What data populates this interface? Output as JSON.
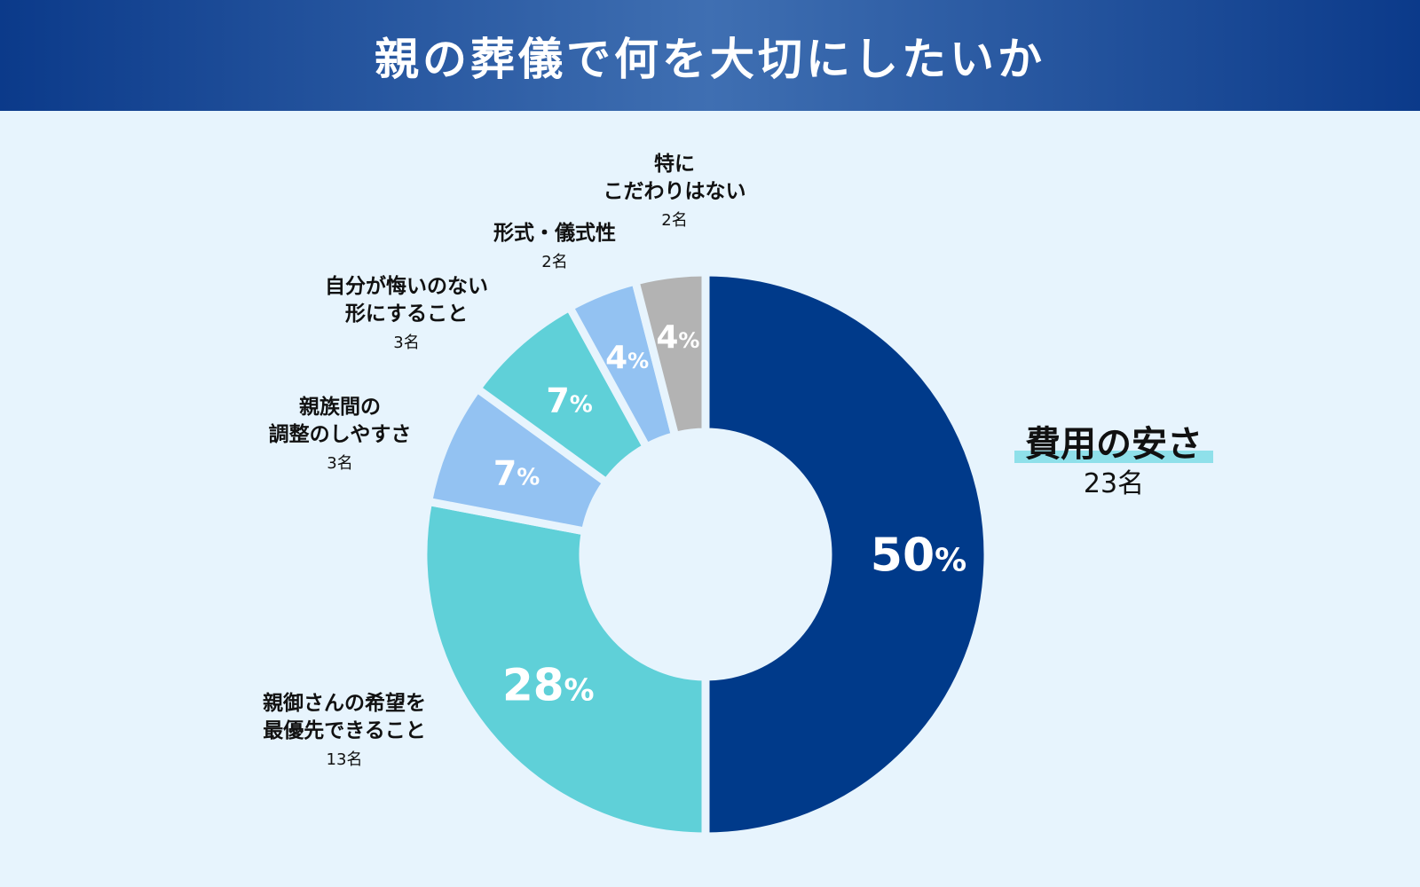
{
  "title": "親の葬儀で何を大切にしたいか",
  "chart_data": {
    "type": "pie",
    "title": "親の葬儀で何を大切にしたいか",
    "slices": [
      {
        "label": "費用の安さ",
        "count": "23名",
        "value": 50,
        "value_label": "50",
        "color": "#003a8a",
        "label_color": "#ffffff"
      },
      {
        "label": "親御さんの希望を最優先できること",
        "label_lines": [
          "親御さんの希望を",
          "最優先できること"
        ],
        "count": "13名",
        "value": 28,
        "value_label": "28",
        "color": "#5fd0d8",
        "label_color": "#ffffff"
      },
      {
        "label": "親族間の調整のしやすさ",
        "label_lines": [
          "親族間の",
          "調整のしやすさ"
        ],
        "count": "3名",
        "value": 7,
        "value_label": "7",
        "color": "#93c2f2",
        "label_color": "#ffffff"
      },
      {
        "label": "自分が悔いのない形にすること",
        "label_lines": [
          "自分が悔いのない",
          "形にすること"
        ],
        "count": "3名",
        "value": 7,
        "value_label": "7",
        "color": "#5fd0d8",
        "label_color": "#ffffff"
      },
      {
        "label": "形式・儀式性",
        "label_lines": [
          "形式・儀式性"
        ],
        "count": "2名",
        "value": 4,
        "value_label": "4",
        "color": "#93c2f2",
        "label_color": "#ffffff"
      },
      {
        "label": "特にこだわりはない",
        "label_lines": [
          "特に",
          "こだわりはない"
        ],
        "count": "2名",
        "value": 4,
        "value_label": "4",
        "color": "#b3b3b3",
        "label_color": "#ffffff"
      }
    ],
    "unit": "%",
    "donut": true
  }
}
